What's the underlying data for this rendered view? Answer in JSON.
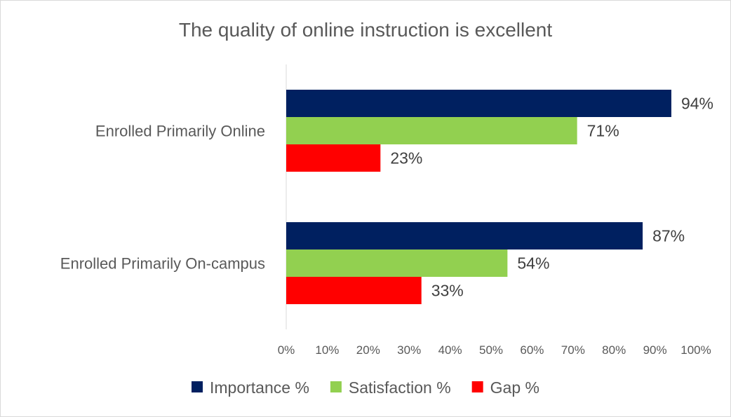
{
  "chart_data": {
    "type": "bar",
    "orientation": "horizontal",
    "title": "The quality of online instruction is excellent",
    "categories": [
      "Enrolled Primarily Online",
      "Enrolled Primarily On-campus"
    ],
    "series": [
      {
        "name": "Importance %",
        "values": [
          94,
          87
        ],
        "color": "#002060"
      },
      {
        "name": "Satisfaction %",
        "values": [
          71,
          54
        ],
        "color": "#92d050"
      },
      {
        "name": "Gap %",
        "values": [
          23,
          33
        ],
        "color": "#ff0000"
      }
    ],
    "xlim": [
      0,
      100
    ],
    "xticks": [
      "0%",
      "10%",
      "20%",
      "30%",
      "40%",
      "50%",
      "60%",
      "70%",
      "80%",
      "90%",
      "100%"
    ],
    "grid": false,
    "legend": "bottom"
  }
}
